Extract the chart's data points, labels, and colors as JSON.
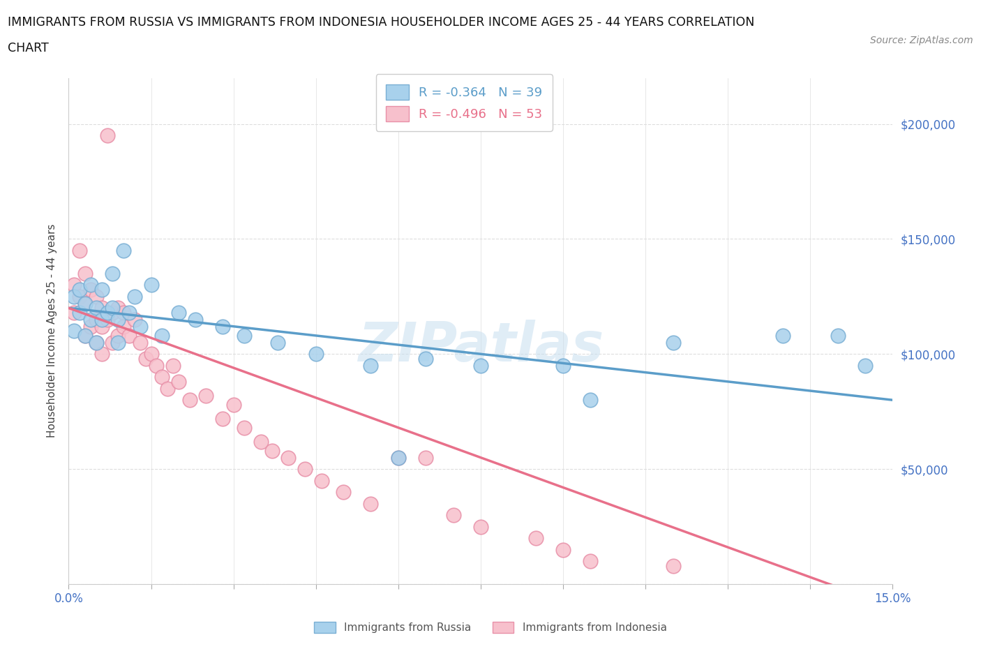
{
  "title_line1": "IMMIGRANTS FROM RUSSIA VS IMMIGRANTS FROM INDONESIA HOUSEHOLDER INCOME AGES 25 - 44 YEARS CORRELATION",
  "title_line2": "CHART",
  "source": "Source: ZipAtlas.com",
  "ylabel": "Householder Income Ages 25 - 44 years",
  "xlim": [
    0.0,
    0.15
  ],
  "ylim": [
    0,
    220000
  ],
  "xticks": [
    0.0,
    0.015,
    0.03,
    0.045,
    0.06,
    0.075,
    0.09,
    0.105,
    0.12,
    0.135,
    0.15
  ],
  "ytick_positions": [
    0,
    50000,
    100000,
    150000,
    200000
  ],
  "ytick_labels": [
    "",
    "$50,000",
    "$100,000",
    "$150,000",
    "$200,000"
  ],
  "russia_color": "#A8D1EC",
  "indonesia_color": "#F7C0CC",
  "russia_edge_color": "#7AAFD4",
  "indonesia_edge_color": "#E890A8",
  "russia_line_color": "#5B9DC9",
  "indonesia_line_color": "#E8708A",
  "russia_R": -0.364,
  "russia_N": 39,
  "indonesia_R": -0.496,
  "indonesia_N": 53,
  "watermark": "ZIPatlas",
  "background_color": "#ffffff",
  "grid_color": "#dddddd",
  "russia_x": [
    0.001,
    0.001,
    0.002,
    0.002,
    0.003,
    0.003,
    0.004,
    0.004,
    0.005,
    0.005,
    0.006,
    0.006,
    0.007,
    0.008,
    0.008,
    0.009,
    0.009,
    0.01,
    0.011,
    0.012,
    0.013,
    0.015,
    0.017,
    0.02,
    0.023,
    0.028,
    0.032,
    0.038,
    0.045,
    0.055,
    0.06,
    0.065,
    0.075,
    0.09,
    0.095,
    0.11,
    0.13,
    0.14,
    0.145
  ],
  "russia_y": [
    125000,
    110000,
    128000,
    118000,
    122000,
    108000,
    130000,
    115000,
    120000,
    105000,
    128000,
    115000,
    118000,
    135000,
    120000,
    115000,
    105000,
    145000,
    118000,
    125000,
    112000,
    130000,
    108000,
    118000,
    115000,
    112000,
    108000,
    105000,
    100000,
    95000,
    55000,
    98000,
    95000,
    95000,
    80000,
    105000,
    108000,
    108000,
    95000
  ],
  "indonesia_x": [
    0.001,
    0.001,
    0.002,
    0.002,
    0.003,
    0.003,
    0.003,
    0.004,
    0.004,
    0.005,
    0.005,
    0.005,
    0.006,
    0.006,
    0.006,
    0.007,
    0.007,
    0.008,
    0.008,
    0.009,
    0.009,
    0.01,
    0.01,
    0.011,
    0.012,
    0.013,
    0.014,
    0.015,
    0.016,
    0.017,
    0.018,
    0.019,
    0.02,
    0.022,
    0.025,
    0.028,
    0.03,
    0.032,
    0.035,
    0.037,
    0.04,
    0.043,
    0.046,
    0.05,
    0.055,
    0.06,
    0.065,
    0.07,
    0.075,
    0.085,
    0.09,
    0.095,
    0.11
  ],
  "indonesia_y": [
    130000,
    118000,
    145000,
    125000,
    135000,
    122000,
    108000,
    128000,
    112000,
    125000,
    115000,
    105000,
    120000,
    112000,
    100000,
    195000,
    115000,
    118000,
    105000,
    120000,
    108000,
    118000,
    112000,
    108000,
    115000,
    105000,
    98000,
    100000,
    95000,
    90000,
    85000,
    95000,
    88000,
    80000,
    82000,
    72000,
    78000,
    68000,
    62000,
    58000,
    55000,
    50000,
    45000,
    40000,
    35000,
    55000,
    55000,
    30000,
    25000,
    20000,
    15000,
    10000,
    8000
  ]
}
